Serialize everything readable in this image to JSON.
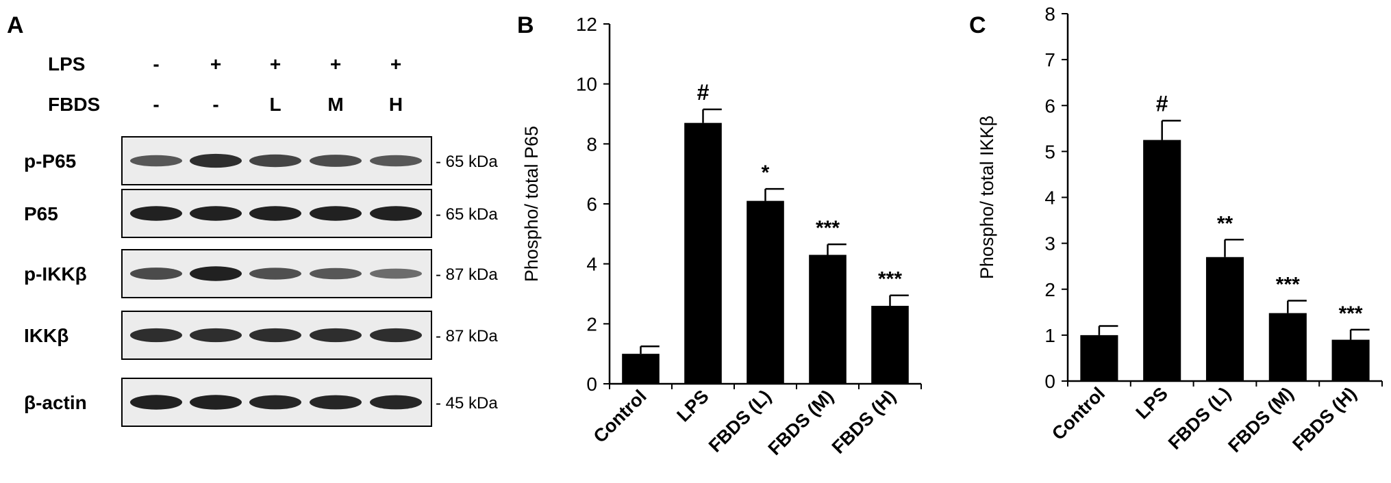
{
  "colors": {
    "bar": "#000000",
    "blot_bg": "#ececec",
    "band": "#1a1a1a",
    "text": "#000000"
  },
  "panel_a": {
    "label": "A",
    "treatment_rows": [
      {
        "label": "LPS",
        "values": [
          "-",
          "+",
          "+",
          "+",
          "+"
        ]
      },
      {
        "label": "FBDS",
        "values": [
          "-",
          "-",
          "L",
          "M",
          "H"
        ]
      }
    ],
    "blots": [
      {
        "label": "p-P65",
        "size": "65 kDa",
        "band_intensity": [
          0.55,
          0.85,
          0.7,
          0.65,
          0.55
        ]
      },
      {
        "label": "P65",
        "size": "65 kDa",
        "band_intensity": [
          0.95,
          0.95,
          0.95,
          0.95,
          0.95
        ]
      },
      {
        "label": "p-IKKβ",
        "size": "87 kDa",
        "band_intensity": [
          0.65,
          0.95,
          0.6,
          0.55,
          0.4
        ]
      },
      {
        "label": "IKKβ",
        "size": "87 kDa",
        "band_intensity": [
          0.85,
          0.85,
          0.85,
          0.85,
          0.85
        ]
      },
      {
        "label": "β-actin",
        "size": "45 kDa",
        "band_intensity": [
          0.95,
          0.95,
          0.9,
          0.9,
          0.9
        ]
      }
    ]
  },
  "chart_data": [
    {
      "panel": "B",
      "type": "bar",
      "categories": [
        "Control",
        "LPS",
        "FBDS (L)",
        "FBDS (M)",
        "FBDS (H)"
      ],
      "values": [
        1.0,
        8.7,
        6.1,
        4.3,
        2.6
      ],
      "errors": [
        0.25,
        0.45,
        0.4,
        0.35,
        0.35
      ],
      "annotations": [
        "",
        "#",
        "*",
        "***",
        "***"
      ],
      "ylabel": "Phospho/ total P65",
      "ylim": [
        0,
        12
      ],
      "yticks": [
        0,
        2,
        4,
        6,
        8,
        10,
        12
      ]
    },
    {
      "panel": "C",
      "type": "bar",
      "categories": [
        "Control",
        "LPS",
        "FBDS (L)",
        "FBDS (M)",
        "FBDS (H)"
      ],
      "values": [
        1.0,
        5.25,
        2.7,
        1.48,
        0.9
      ],
      "errors": [
        0.2,
        0.42,
        0.38,
        0.27,
        0.22
      ],
      "annotations": [
        "",
        "#",
        "**",
        "***",
        "***"
      ],
      "ylabel": "Phospho/ total IKKβ",
      "ylim": [
        0,
        8
      ],
      "yticks": [
        0,
        1,
        2,
        3,
        4,
        5,
        6,
        7,
        8
      ]
    }
  ]
}
